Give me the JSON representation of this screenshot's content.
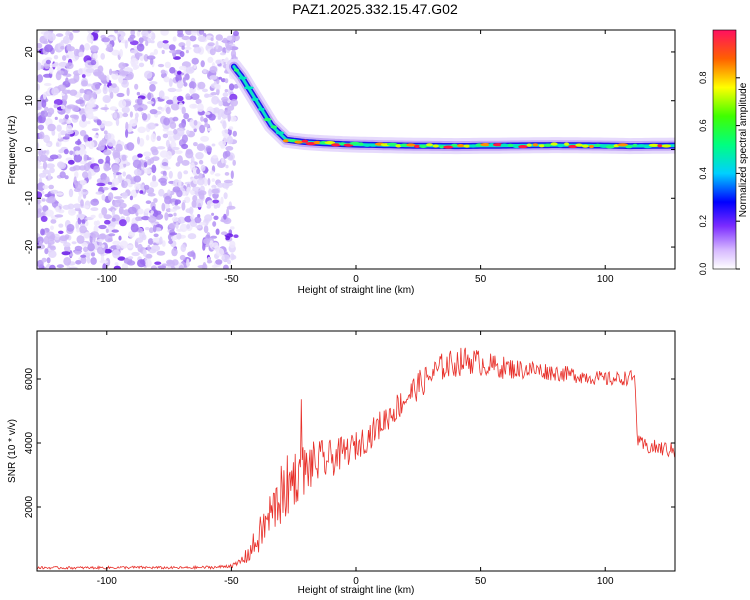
{
  "title": "PAZ1.2025.332.15.47.G02",
  "colors": {
    "snr_line": "#e8302a",
    "axis": "#000000",
    "background": "#ffffff",
    "noise_light": "#e2d6fb",
    "noise_dark": "#7a2ef0"
  },
  "chart_data": [
    {
      "type": "heatmap",
      "name": "frequency-spectrum",
      "xlabel": "Height of straight line (km)",
      "ylabel": "Frequency (Hz)",
      "xlim": [
        -128,
        128
      ],
      "ylim": [
        -24.5,
        24.5
      ],
      "xticks": [
        -100,
        -50,
        0,
        50,
        100
      ],
      "yticks": [
        -20,
        -10,
        0,
        10,
        20
      ],
      "colorbar": {
        "label": "Normalized spectral amplitude",
        "range": [
          0,
          1
        ],
        "ticks": [
          "0.0",
          "0.2",
          "0.4",
          "0.6",
          "0.8"
        ],
        "tick_values": [
          0.0,
          0.2,
          0.4,
          0.6,
          0.8
        ]
      },
      "noise_region_x": [
        -128,
        -48
      ],
      "signal_track": {
        "x": [
          -49,
          -46,
          -43,
          -40,
          -37,
          -34,
          -31,
          -28,
          -20,
          -10,
          0,
          20,
          40,
          60,
          80,
          100,
          110,
          128
        ],
        "freq": [
          17,
          15,
          12.5,
          10,
          7.5,
          5,
          3.5,
          2,
          1.5,
          1.2,
          1.0,
          0.8,
          0.7,
          0.8,
          0.9,
          0.8,
          0.7,
          0.8
        ]
      }
    },
    {
      "type": "line",
      "name": "snr",
      "xlabel": "Height of straight line (km)",
      "ylabel": "SNR (10 * v/v)",
      "xlim": [
        -128,
        128
      ],
      "ylim": [
        0,
        7500
      ],
      "xticks": [
        -100,
        -50,
        0,
        50,
        100
      ],
      "yticks": [
        2000,
        4000,
        6000
      ],
      "series": [
        {
          "name": "SNR",
          "x": [
            -128,
            -110,
            -90,
            -70,
            -55,
            -48,
            -44,
            -40,
            -36,
            -32,
            -28,
            -24,
            -20,
            -15,
            -10,
            -5,
            0,
            5,
            10,
            15,
            20,
            25,
            30,
            35,
            40,
            45,
            50,
            55,
            60,
            65,
            70,
            75,
            80,
            85,
            90,
            95,
            100,
            105,
            110,
            112,
            113,
            116,
            120,
            125,
            128
          ],
          "y": [
            100,
            100,
            110,
            100,
            120,
            200,
            450,
            900,
            1500,
            2100,
            2600,
            3000,
            3200,
            3400,
            3500,
            3700,
            3900,
            4200,
            4600,
            5000,
            5400,
            5800,
            6100,
            6400,
            6500,
            6600,
            6500,
            6400,
            6350,
            6300,
            6300,
            6250,
            6200,
            6150,
            6100,
            6050,
            6000,
            6000,
            6050,
            6000,
            4000,
            3900,
            3850,
            3800,
            3750
          ],
          "noise_amp": [
            40,
            40,
            45,
            40,
            50,
            80,
            250,
            500,
            700,
            900,
            1000,
            900,
            800,
            700,
            600,
            500,
            450,
            450,
            450,
            450,
            450,
            450,
            450,
            450,
            450,
            450,
            400,
            380,
            350,
            320,
            300,
            280,
            260,
            250,
            240,
            230,
            230,
            230,
            230,
            230,
            250,
            250,
            250,
            250,
            250
          ]
        }
      ]
    }
  ]
}
